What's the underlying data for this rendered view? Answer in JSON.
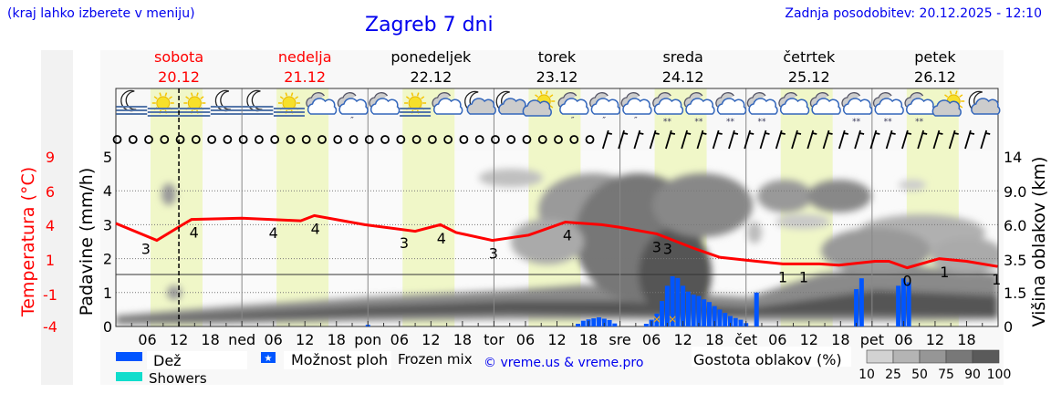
{
  "header": {
    "hint": "(kraj lahko izberete v meniju)",
    "title": "Zagreb 7 dni",
    "updated": "Zadnja posodobitev: 20.12.2025 - 12:10"
  },
  "days": [
    {
      "name": "sobota",
      "date": "20.12",
      "color": "#ff0000"
    },
    {
      "name": "nedelja",
      "date": "21.12",
      "color": "#ff0000"
    },
    {
      "name": "ponedeljek",
      "date": "22.12",
      "color": "#000000"
    },
    {
      "name": "torek",
      "date": "23.12",
      "color": "#000000"
    },
    {
      "name": "sreda",
      "date": "24.12",
      "color": "#000000"
    },
    {
      "name": "četrtek",
      "date": "25.12",
      "color": "#000000"
    },
    {
      "name": "petek",
      "date": "26.12",
      "color": "#000000"
    }
  ],
  "weather_icons": [
    "moon-fog",
    "sun-fog",
    "sun-fog",
    "moon-fog",
    "moon-fog",
    "sun-fog",
    "cloud",
    "cloud-drizzle",
    "cloud",
    "sun-fog",
    "cloud",
    "moon-cloud",
    "moon-cloud",
    "sun-cloud",
    "cloud-drizzle",
    "cloud-drizzle",
    "cloud-drizzle",
    "cloud-snow",
    "cloud-snow",
    "cloud-snow",
    "cloud-snow",
    "cloud",
    "cloud",
    "cloud-snow",
    "cloud-snow",
    "cloud-snow",
    "sun-cloud",
    "moon-cloud"
  ],
  "wind": [
    "calm",
    "calm",
    "calm",
    "calm",
    "calm",
    "calm",
    "calm",
    "calm",
    "calm",
    "calm",
    "calm",
    "calm",
    "calm",
    "calm",
    "calm",
    "calm",
    "calm",
    "calm",
    "calm",
    "calm",
    "calm",
    "calm",
    "calm",
    "calm",
    "calm",
    "calm",
    "calm",
    "calm",
    "calm",
    "calm",
    "calm",
    "barb",
    "barb",
    "barb",
    "barb",
    "barb",
    "barb",
    "barb",
    "barb",
    "barb",
    "barb",
    "barb",
    "barb",
    "barb",
    "barb",
    "barb",
    "barb",
    "barb",
    "barb",
    "barb",
    "barb",
    "barb",
    "barb",
    "barb",
    "barb",
    "barb"
  ],
  "chart_data": {
    "type": "line+bar",
    "x_unit": "hour from 20.12 00:00",
    "xlim": [
      0,
      168
    ],
    "x_tick_labels": [
      "06",
      "12",
      "18",
      "ned",
      "06",
      "12",
      "18",
      "pon",
      "06",
      "12",
      "18",
      "tor",
      "06",
      "12",
      "18",
      "sre",
      "06",
      "12",
      "18",
      "čet",
      "06",
      "12",
      "18",
      "pet",
      "06",
      "12",
      "18"
    ],
    "now_hour": 12,
    "daylight_hours": [
      6.6,
      16.5
    ],
    "left_axis": {
      "label": "Temperatura (°C)",
      "ticks": [
        "9",
        "6",
        "4",
        "1",
        "-1",
        "-4"
      ],
      "ylim": [
        -4,
        9
      ]
    },
    "precip_axis": {
      "label": "Padavine (mm/h)",
      "ticks": [
        "5",
        "4",
        "3",
        "2",
        "1",
        "0"
      ],
      "ylim": [
        0,
        5
      ]
    },
    "right_axis": {
      "label": "Višina oblakov (km)",
      "ticks": [
        "14",
        "9.0",
        "6.0",
        "3.5",
        "1.5",
        "0"
      ]
    },
    "temperature": {
      "color": "#ff0000",
      "hours": [
        0,
        7.8,
        12.7,
        14.4,
        24,
        35.2,
        37.8,
        47.4,
        57,
        61.8,
        64.8,
        71.7,
        78.6,
        85.6,
        92.5,
        96,
        103,
        110,
        115,
        122,
        127,
        134,
        137.7,
        144.6,
        147.2,
        150.7,
        156.8,
        162,
        167.9
      ],
      "values": [
        3.9,
        2.6,
        3.8,
        4.2,
        4.3,
        4.1,
        4.5,
        3.8,
        3.3,
        3.8,
        3.2,
        2.6,
        3.0,
        4.0,
        3.8,
        3.6,
        3.1,
        2.0,
        1.3,
        1.0,
        0.8,
        0.8,
        0.7,
        1.0,
        1.0,
        0.5,
        1.2,
        1.0,
        0.6
      ]
    },
    "temperature_labels": [
      {
        "hour": 5.7,
        "text": "3"
      },
      {
        "hour": 14.9,
        "text": "4"
      },
      {
        "hour": 30,
        "text": "4"
      },
      {
        "hour": 38,
        "text": "4"
      },
      {
        "hour": 54.9,
        "text": "3"
      },
      {
        "hour": 62,
        "text": "4"
      },
      {
        "hour": 71.9,
        "text": "3"
      },
      {
        "hour": 86,
        "text": "4"
      },
      {
        "hour": 103,
        "text": "3"
      },
      {
        "hour": 104,
        "text": "3"
      },
      {
        "hour": 127,
        "text": "1"
      },
      {
        "hour": 131,
        "text": "1"
      },
      {
        "hour": 150.7,
        "text": "0"
      },
      {
        "hour": 157.8,
        "text": "1"
      },
      {
        "hour": 167.7,
        "text": "1"
      }
    ],
    "precipitation": {
      "color": "#0055ff",
      "hours": [
        48,
        88,
        89,
        90,
        91,
        92,
        93,
        94,
        95,
        101,
        102,
        103,
        104,
        105,
        106,
        107,
        108,
        109,
        110,
        111,
        112,
        113,
        114,
        115,
        116,
        117,
        118,
        119,
        120,
        122,
        141,
        142,
        149,
        150,
        151
      ],
      "values": [
        0.05,
        0.08,
        0.17,
        0.21,
        0.24,
        0.27,
        0.23,
        0.19,
        0.09,
        0.08,
        0.2,
        0.38,
        0.75,
        1.2,
        1.48,
        1.43,
        1.2,
        1.03,
        0.94,
        0.9,
        0.8,
        0.72,
        0.6,
        0.5,
        0.4,
        0.31,
        0.25,
        0.2,
        0.1,
        1.0,
        1.1,
        1.42,
        1.2,
        1.42,
        1.3
      ]
    },
    "frozen_mix_hours": [
      103,
      106
    ]
  },
  "legend": {
    "rain": "Dež",
    "rain_color": "#0055ff",
    "showers": "Showers",
    "showers_color": "#11ddcc",
    "possible_showers": "Možnost ploh",
    "frozen_mix": "Frozen mix",
    "credit": "© vreme.us & vreme.pro",
    "cloud_density_title": "Gostota oblakov (%)",
    "cloud_density_ticks": [
      "10",
      "25",
      "50",
      "75",
      "90",
      "100"
    ],
    "cloud_density_colors": [
      "#d2d2d2",
      "#b4b4b4",
      "#969696",
      "#787878",
      "#5a5a5a"
    ]
  }
}
